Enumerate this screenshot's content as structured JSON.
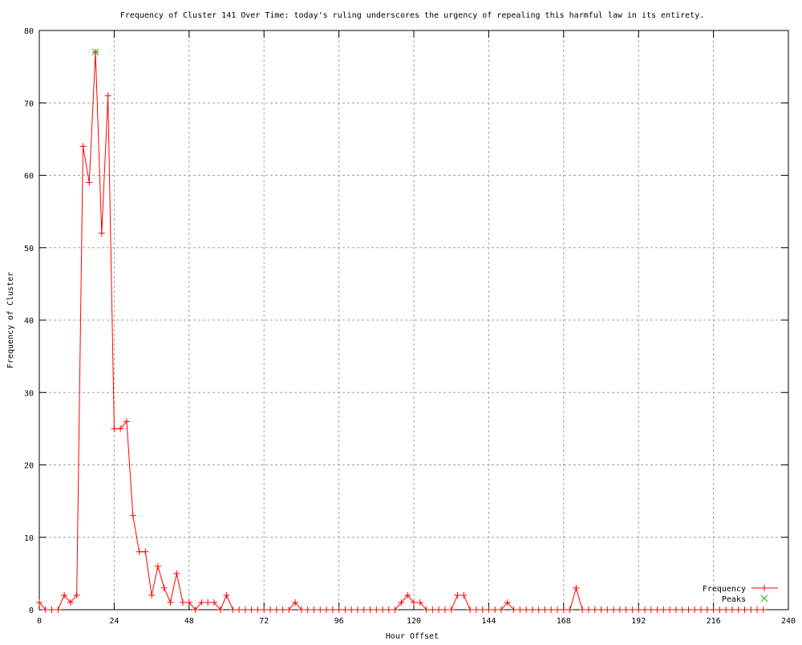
{
  "chart_data": {
    "type": "line",
    "title": "Frequency of Cluster 141 Over Time: today's ruling underscores the urgency of repealing this harmful law in its entirety.",
    "xlabel": "Hour Offset",
    "ylabel": "Frequency of Cluster",
    "xlim": [
      0,
      240
    ],
    "ylim": [
      0,
      80
    ],
    "xticks": [
      0,
      24,
      48,
      72,
      96,
      120,
      144,
      168,
      192,
      216,
      240
    ],
    "yticks": [
      0,
      10,
      20,
      30,
      40,
      50,
      60,
      70,
      80
    ],
    "grid": true,
    "legend_placement": "bottom-right",
    "series": [
      {
        "name": "Frequency",
        "color": "#ff0000",
        "marker": "plus",
        "x_start": 0,
        "x_step": 2,
        "values": [
          1,
          0,
          0,
          0,
          2,
          1,
          2,
          64,
          59,
          77,
          52,
          71,
          25,
          25,
          26,
          13,
          8,
          8,
          2,
          6,
          3,
          1,
          5,
          1,
          1,
          0,
          1,
          1,
          1,
          0,
          2,
          0,
          0,
          0,
          0,
          0,
          0,
          0,
          0,
          0,
          0,
          1,
          0,
          0,
          0,
          0,
          0,
          0,
          0,
          0,
          0,
          0,
          0,
          0,
          0,
          0,
          0,
          0,
          1,
          2,
          1,
          1,
          0,
          0,
          0,
          0,
          0,
          2,
          2,
          0,
          0,
          0,
          0,
          0,
          0,
          1,
          0,
          0,
          0,
          0,
          0,
          0,
          0,
          0,
          0,
          0,
          3,
          0,
          0,
          0,
          0,
          0,
          0,
          0,
          0,
          0,
          0,
          0,
          0,
          0,
          0,
          0,
          0,
          0,
          0,
          0,
          0,
          0,
          0,
          0,
          0,
          0,
          0,
          0,
          0,
          0,
          0
        ]
      },
      {
        "name": "Peaks",
        "color": "#00c000",
        "marker": "cross",
        "points": [
          [
            18,
            77
          ]
        ]
      }
    ]
  }
}
